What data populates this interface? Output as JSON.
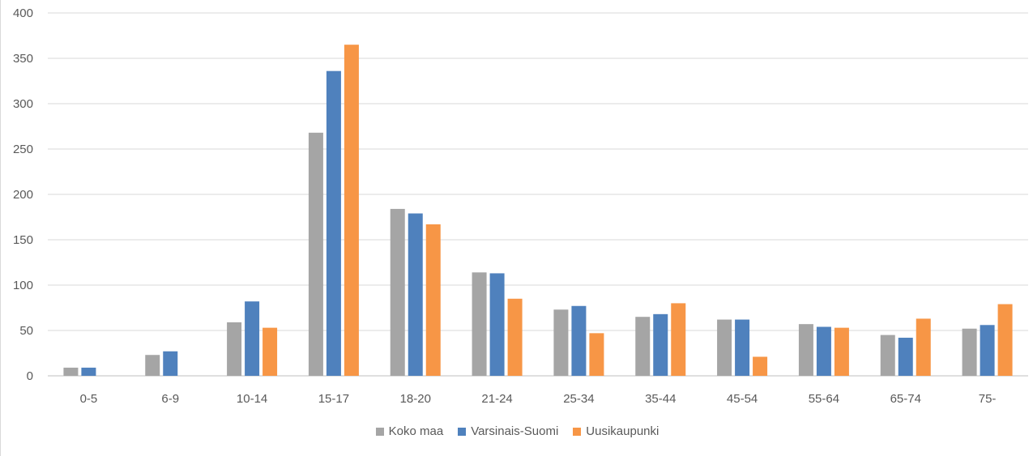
{
  "chart_data": {
    "type": "bar",
    "categories": [
      "0-5",
      "6-9",
      "10-14",
      "15-17",
      "18-20",
      "21-24",
      "25-34",
      "35-44",
      "45-54",
      "55-64",
      "65-74",
      "75-"
    ],
    "series": [
      {
        "name": "Koko maa",
        "color": "#a5a5a5",
        "values": [
          9,
          23,
          59,
          268,
          184,
          114,
          73,
          65,
          62,
          57,
          45,
          52
        ]
      },
      {
        "name": "Varsinais-Suomi",
        "color": "#4f81bd",
        "values": [
          9,
          27,
          82,
          336,
          179,
          113,
          77,
          68,
          62,
          54,
          42,
          56
        ]
      },
      {
        "name": "Uusikaupunki",
        "color": "#f79646",
        "values": [
          0,
          0,
          53,
          365,
          167,
          85,
          47,
          80,
          21,
          53,
          63,
          79
        ]
      }
    ],
    "y_ticks": [
      "0",
      "50",
      "100",
      "150",
      "200",
      "250",
      "300",
      "350",
      "400"
    ],
    "ylim": [
      0,
      400
    ],
    "grid": "horizontal",
    "legend_position": "bottom"
  }
}
